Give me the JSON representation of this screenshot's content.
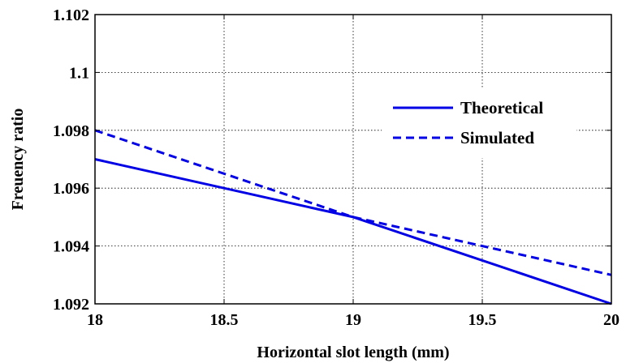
{
  "chart_data": {
    "type": "line",
    "xlabel": "Horizontal slot length (mm)",
    "ylabel": "Freuency ratio",
    "xlim": [
      18,
      20
    ],
    "ylim": [
      1.092,
      1.102
    ],
    "xticks": [
      18,
      18.5,
      19,
      19.5,
      20
    ],
    "yticks": [
      1.092,
      1.094,
      1.096,
      1.098,
      1.1,
      1.102
    ],
    "xtick_labels": [
      "18",
      "18.5",
      "19",
      "19.5",
      "20"
    ],
    "ytick_labels": [
      "1.092",
      "1.094",
      "1.096",
      "1.098",
      "1.1",
      "1.102"
    ],
    "grid": true,
    "legend_position": "top-right",
    "series": [
      {
        "name": "Theoretical",
        "style": "solid",
        "color": "#0000e6",
        "x": [
          18,
          19,
          20
        ],
        "y": [
          1.097,
          1.095,
          1.092
        ]
      },
      {
        "name": "Simulated",
        "style": "dashed",
        "color": "#0000e6",
        "x": [
          18,
          19,
          20
        ],
        "y": [
          1.098,
          1.095,
          1.093
        ]
      }
    ]
  }
}
